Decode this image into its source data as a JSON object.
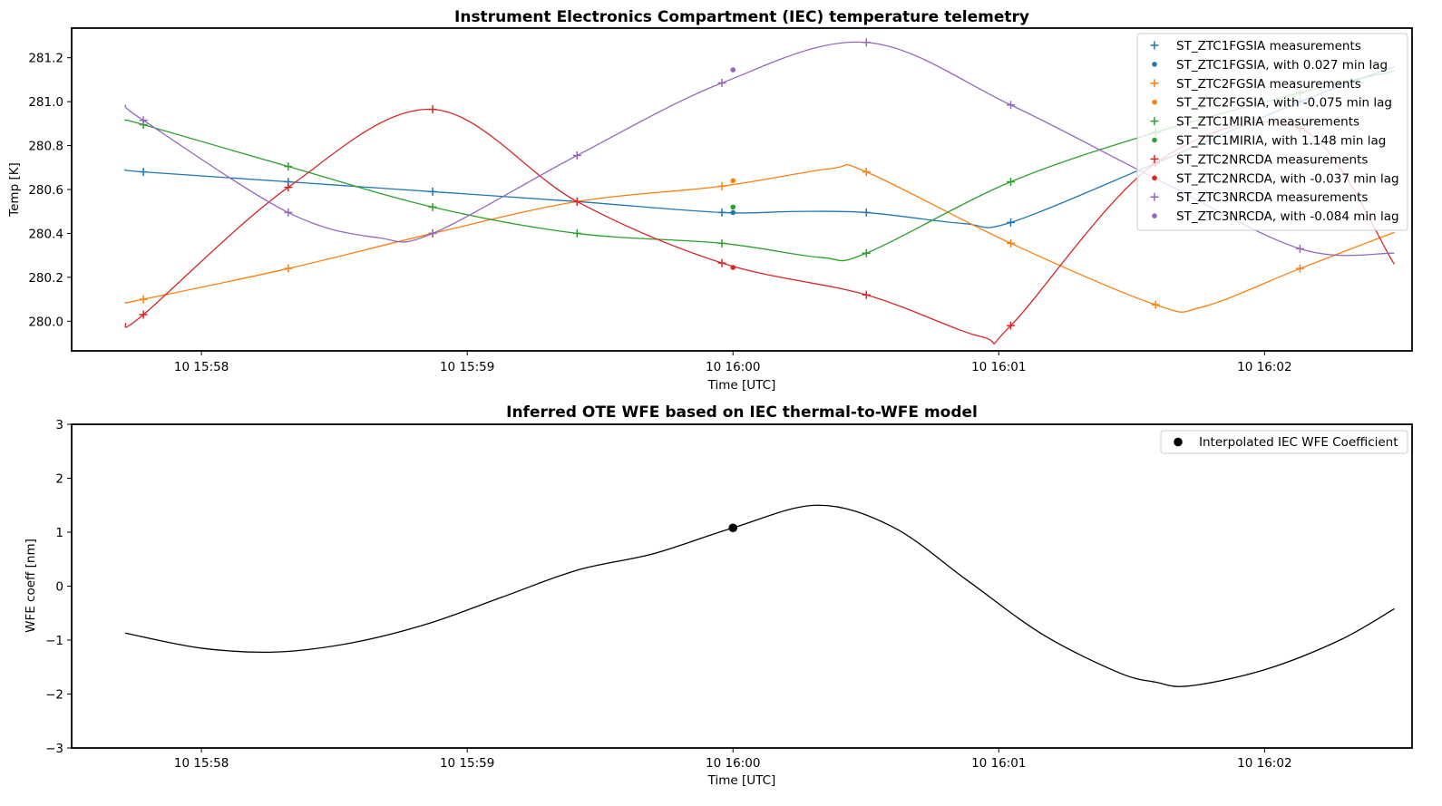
{
  "chart_data": [
    {
      "type": "line",
      "title": "Instrument Electronics Compartment (IEC) temperature telemetry",
      "xlabel": "Time [UTC]",
      "ylabel": "Temp [K]",
      "x_tick_labels": [
        "10 15:58",
        "10 15:59",
        "10 16:00",
        "10 16:01",
        "10 16:02"
      ],
      "x_tick_times": [
        "15:58:00",
        "15:59:00",
        "16:00:00",
        "16:01:00",
        "16:02:00"
      ],
      "xlim": [
        "15:57:30.7",
        "16:02:33.3"
      ],
      "y_ticks": [
        280.0,
        280.2,
        280.4,
        280.6,
        280.8,
        281.0,
        281.2
      ],
      "y_tick_labels": [
        "280.0",
        "280.2",
        "280.4",
        "280.6",
        "280.8",
        "281.0",
        "281.2"
      ],
      "ylim": [
        279.865,
        281.335
      ],
      "legend_position": "top-right",
      "event_time": "16:00:00",
      "series": [
        {
          "name": "ST_ZTC1FGSIA measurements",
          "lag_label": "ST_ZTC1FGSIA, with 0.027 min lag",
          "color": "#1f77b4",
          "times": [
            "15:57:46.9",
            "15:58:19.6",
            "15:58:52.2",
            "15:59:24.8",
            "15:59:57.5",
            "16:00:30.1",
            "16:01:02.7",
            "16:01:35.4",
            "16:02:08.0"
          ],
          "values": [
            280.68,
            280.635,
            280.59,
            280.545,
            280.495,
            280.495,
            280.45,
            280.72,
            281.0
          ],
          "curve_times": [
            "15:57:42.8",
            "15:57:46.9",
            "15:58:19.6",
            "15:58:52.2",
            "15:59:24.8",
            "15:59:57.5",
            "16:00:14",
            "16:00:30.1",
            "16:00:52",
            "16:01:02.7",
            "16:01:35.4",
            "16:02:08.0",
            "16:02:29.3"
          ],
          "curve_values": [
            280.69,
            280.68,
            280.635,
            280.59,
            280.545,
            280.495,
            280.5,
            280.495,
            280.445,
            280.45,
            280.72,
            281.0,
            281.16
          ],
          "lag_value": 280.495
        },
        {
          "name": "ST_ZTC2FGSIA measurements",
          "lag_label": "ST_ZTC2FGSIA, with -0.075 min lag",
          "color": "#ff7f0e",
          "times": [
            "15:57:46.9",
            "15:58:19.6",
            "15:58:52.2",
            "15:59:24.8",
            "15:59:57.5",
            "16:00:30.1",
            "16:01:02.7",
            "16:01:35.4",
            "16:02:08.0"
          ],
          "values": [
            280.1,
            280.24,
            280.4,
            280.545,
            280.615,
            280.68,
            280.355,
            280.075,
            280.24
          ],
          "curve_times": [
            "15:57:42.8",
            "15:57:46.9",
            "15:58:19.6",
            "15:58:52.2",
            "15:59:24.8",
            "15:59:57.5",
            "16:00:22",
            "16:00:30.1",
            "16:01:02.7",
            "16:01:35.4",
            "16:01:46",
            "16:02:08.0",
            "16:02:29.3"
          ],
          "curve_values": [
            280.085,
            280.1,
            280.24,
            280.4,
            280.545,
            280.615,
            280.695,
            280.68,
            280.355,
            280.075,
            280.065,
            280.24,
            280.405
          ],
          "lag_value": 280.64
        },
        {
          "name": "ST_ZTC1MIRIA measurements",
          "lag_label": "ST_ZTC1MIRIA, with 1.148 min lag",
          "color": "#2ca02c",
          "times": [
            "15:57:46.9",
            "15:58:19.6",
            "15:58:52.2",
            "15:59:24.8",
            "15:59:57.5",
            "16:00:30.1",
            "16:01:02.7",
            "16:01:35.4",
            "16:02:08.0"
          ],
          "values": [
            280.895,
            280.705,
            280.52,
            280.4,
            280.355,
            280.31,
            280.635,
            280.86,
            281.04
          ],
          "curve_times": [
            "15:57:42.8",
            "15:57:46.9",
            "15:58:19.6",
            "15:58:52.2",
            "15:59:24.8",
            "15:59:57.5",
            "16:00:20",
            "16:00:30.1",
            "16:01:02.7",
            "16:01:35.4",
            "16:02:08.0",
            "16:02:29.3"
          ],
          "curve_values": [
            280.915,
            280.895,
            280.705,
            280.52,
            280.4,
            280.355,
            280.29,
            280.31,
            280.635,
            280.86,
            281.04,
            281.14
          ],
          "lag_value": 280.52
        },
        {
          "name": "ST_ZTC2NRCDA measurements",
          "lag_label": "ST_ZTC2NRCDA, with -0.037 min lag",
          "color": "#d62728",
          "times": [
            "15:57:46.9",
            "15:58:19.6",
            "15:58:52.2",
            "15:59:24.8",
            "15:59:57.5",
            "16:00:30.1",
            "16:01:02.7",
            "16:01:35.4",
            "16:02:08.0"
          ],
          "values": [
            280.03,
            280.61,
            280.965,
            280.545,
            280.265,
            280.12,
            279.98,
            280.72,
            280.88
          ],
          "curve_times": [
            "15:57:42.8",
            "15:57:46.9",
            "15:58:19.6",
            "15:58:52.2",
            "15:59:24.8",
            "15:59:57.5",
            "16:00:30.1",
            "16:00:56",
            "16:01:02.7",
            "16:01:35.4",
            "16:02:08.0",
            "16:02:29.3"
          ],
          "curve_values": [
            279.99,
            280.03,
            280.61,
            280.965,
            280.545,
            280.265,
            280.12,
            279.93,
            279.98,
            280.72,
            280.88,
            280.26
          ],
          "lag_value": 280.245
        },
        {
          "name": "ST_ZTC3NRCDA measurements",
          "lag_label": "ST_ZTC3NRCDA, with -0.084 min lag",
          "color": "#9467bd",
          "times": [
            "15:57:46.9",
            "15:58:19.6",
            "15:58:52.2",
            "15:59:24.8",
            "15:59:57.5",
            "16:00:30.1",
            "16:01:02.7",
            "16:01:35.4",
            "16:02:08.0"
          ],
          "values": [
            280.915,
            280.495,
            280.4,
            280.755,
            281.085,
            281.27,
            280.985,
            280.65,
            280.33
          ],
          "curve_times": [
            "15:57:42.8",
            "15:57:46.9",
            "15:58:19.6",
            "15:58:40",
            "15:58:52.2",
            "15:59:24.8",
            "15:59:57.5",
            "16:00:30.1",
            "16:01:02.7",
            "16:01:35.4",
            "16:02:08.0",
            "16:02:29.3"
          ],
          "curve_values": [
            280.985,
            280.915,
            280.495,
            280.38,
            280.4,
            280.755,
            281.085,
            281.27,
            280.985,
            280.65,
            280.33,
            280.31
          ],
          "lag_value": 281.145
        }
      ]
    },
    {
      "type": "line",
      "title": "Inferred OTE WFE based on IEC thermal-to-WFE model",
      "xlabel": "Time [UTC]",
      "ylabel": "WFE coeff [nm]",
      "x_tick_labels": [
        "10 15:58",
        "10 15:59",
        "10 16:00",
        "10 16:01",
        "10 16:02"
      ],
      "x_tick_times": [
        "15:58:00",
        "15:59:00",
        "16:00:00",
        "16:01:00",
        "16:02:00"
      ],
      "xlim": [
        "15:57:30.7",
        "16:02:33.3"
      ],
      "y_ticks": [
        -3,
        -2,
        -1,
        0,
        1,
        2,
        3
      ],
      "y_tick_labels": [
        "−3",
        "−2",
        "−1",
        "0",
        "1",
        "2",
        "3"
      ],
      "ylim": [
        -3,
        3
      ],
      "legend_position": "top-right",
      "series": [
        {
          "name": "Interpolated IEC WFE Coefficient",
          "color": "#000000",
          "times": [
            "15:57:42.8",
            "15:58:00",
            "15:58:17",
            "15:58:34",
            "15:58:51",
            "15:59:08",
            "15:59:25",
            "15:59:42",
            "16:00:00",
            "16:00:19",
            "16:00:36",
            "16:00:53",
            "16:01:10",
            "16:01:27",
            "16:01:35.4",
            "16:01:43",
            "16:02:00",
            "16:02:17",
            "16:02:29.3"
          ],
          "values": [
            -0.87,
            -1.15,
            -1.22,
            -1.05,
            -0.7,
            -0.2,
            0.3,
            0.6,
            1.08,
            1.5,
            1.1,
            0.1,
            -0.9,
            -1.6,
            -1.78,
            -1.85,
            -1.55,
            -1.0,
            -0.42
          ],
          "marker_time": "16:00:00",
          "marker_value": 1.08
        }
      ]
    }
  ]
}
